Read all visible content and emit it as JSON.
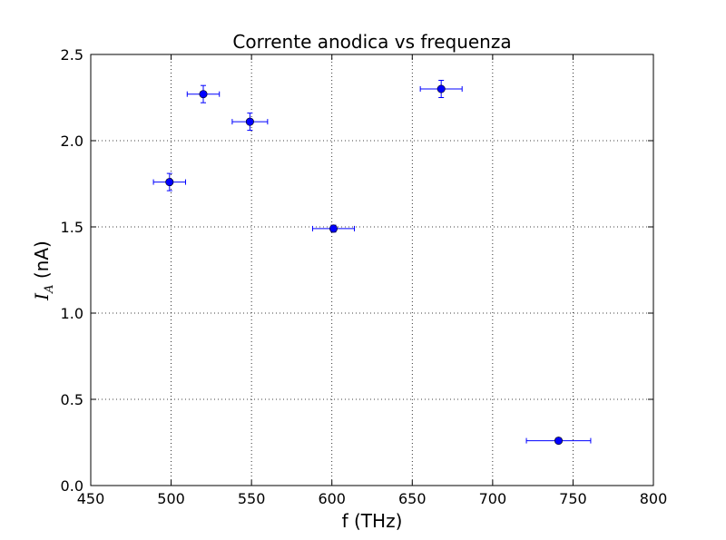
{
  "chart_data": {
    "type": "scatter",
    "title": "Corrente anodica vs frequenza",
    "xlabel": "f (THz)",
    "ylabel_symbol": "I",
    "ylabel_subscript": "A",
    "ylabel_unit": " (nA)",
    "xlim": [
      450,
      800
    ],
    "ylim": [
      0.0,
      2.5
    ],
    "x_ticks": [
      450,
      500,
      550,
      600,
      650,
      700,
      750,
      800
    ],
    "x_tick_labels": [
      "450",
      "500",
      "550",
      "600",
      "650",
      "700",
      "750",
      "800"
    ],
    "y_ticks": [
      0.0,
      0.5,
      1.0,
      1.5,
      2.0,
      2.5
    ],
    "y_tick_labels": [
      "0.0",
      "0.5",
      "1.0",
      "1.5",
      "2.0",
      "2.5"
    ],
    "grid": true,
    "marker_color": "#0000ff",
    "points": [
      {
        "x": 499,
        "y": 1.76,
        "xerr": 10,
        "yerr": 0.05
      },
      {
        "x": 520,
        "y": 2.27,
        "xerr": 10,
        "yerr": 0.05
      },
      {
        "x": 549,
        "y": 2.11,
        "xerr": 11,
        "yerr": 0.05
      },
      {
        "x": 601,
        "y": 1.49,
        "xerr": 13,
        "yerr": 0.02
      },
      {
        "x": 668,
        "y": 2.3,
        "xerr": 13,
        "yerr": 0.05
      },
      {
        "x": 741,
        "y": 0.26,
        "xerr": 20,
        "yerr": 0.01
      }
    ]
  }
}
